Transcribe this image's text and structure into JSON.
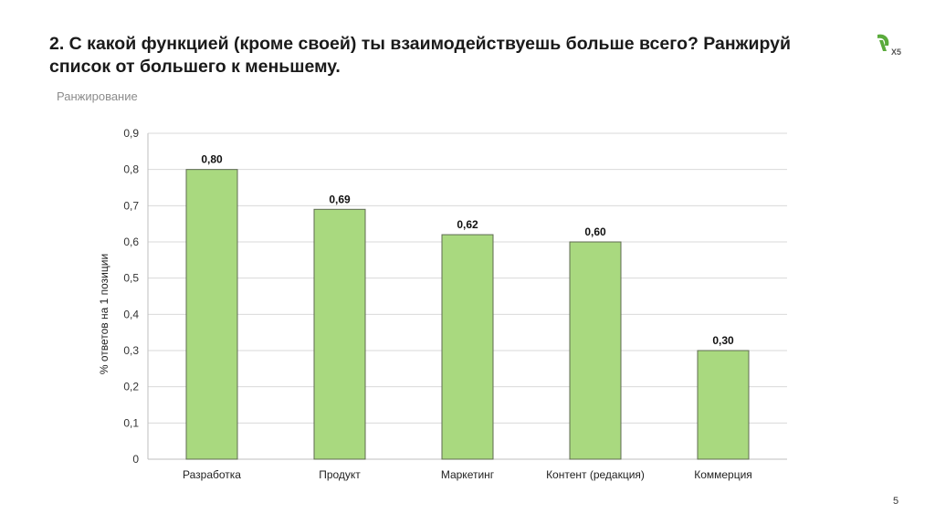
{
  "slide": {
    "title": "2. С какой функцией (кроме своей) ты взаимодействуешь больше всего? Ранжируй список от большего к меньшему.",
    "subtitle": "Ранжирование",
    "page_number": "5",
    "logo_text": "Х5",
    "logo_color": "#5aab3c"
  },
  "chart_data": {
    "type": "bar",
    "title": "",
    "xlabel": "",
    "ylabel": "% ответов на 1 позиции",
    "categories": [
      "Разработка",
      "Продукт",
      "Маркетинг",
      "Контент (редакция)",
      "Коммерция"
    ],
    "values": [
      0.8,
      0.69,
      0.62,
      0.6,
      0.3
    ],
    "value_labels": [
      "0,80",
      "0,69",
      "0,62",
      "0,60",
      "0,30"
    ],
    "ylim": [
      0,
      0.9
    ],
    "yticks": [
      0,
      0.1,
      0.2,
      0.3,
      0.4,
      0.5,
      0.6,
      0.7,
      0.8,
      0.9
    ],
    "ytick_labels": [
      "0",
      "0,1",
      "0,2",
      "0,3",
      "0,4",
      "0,5",
      "0,6",
      "0,7",
      "0,8",
      "0,9"
    ],
    "grid": true,
    "legend": "none",
    "bar_color": "#a9d97f",
    "bar_edge_color": "#5f6b52"
  }
}
